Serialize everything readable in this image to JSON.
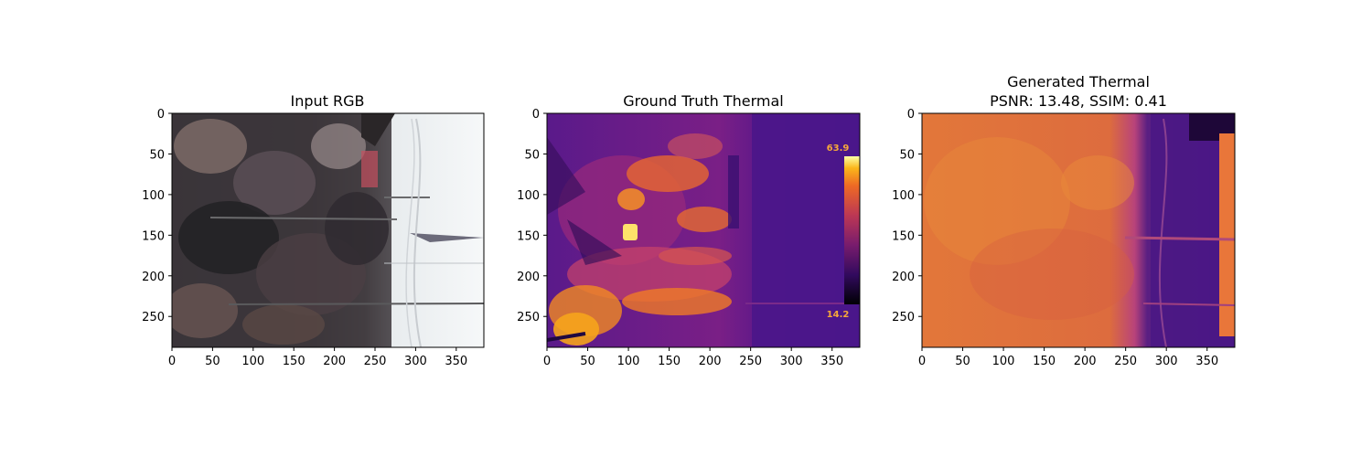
{
  "panels": [
    {
      "title_lines": [
        "Input RGB"
      ],
      "kind": "rgb"
    },
    {
      "title_lines": [
        "Ground Truth Thermal"
      ],
      "kind": "thermal_gt",
      "scale_max": "63.9",
      "scale_min": "14.2"
    },
    {
      "title_lines": [
        "Generated Thermal",
        "PSNR: 13.48, SSIM: 0.41"
      ],
      "kind": "thermal_gen"
    }
  ],
  "axes": {
    "x_ticks": [
      0,
      50,
      100,
      150,
      200,
      250,
      300,
      350
    ],
    "y_ticks": [
      0,
      50,
      100,
      150,
      200,
      250
    ],
    "x_extent": [
      0,
      384
    ],
    "y_extent": [
      0,
      288
    ]
  }
}
